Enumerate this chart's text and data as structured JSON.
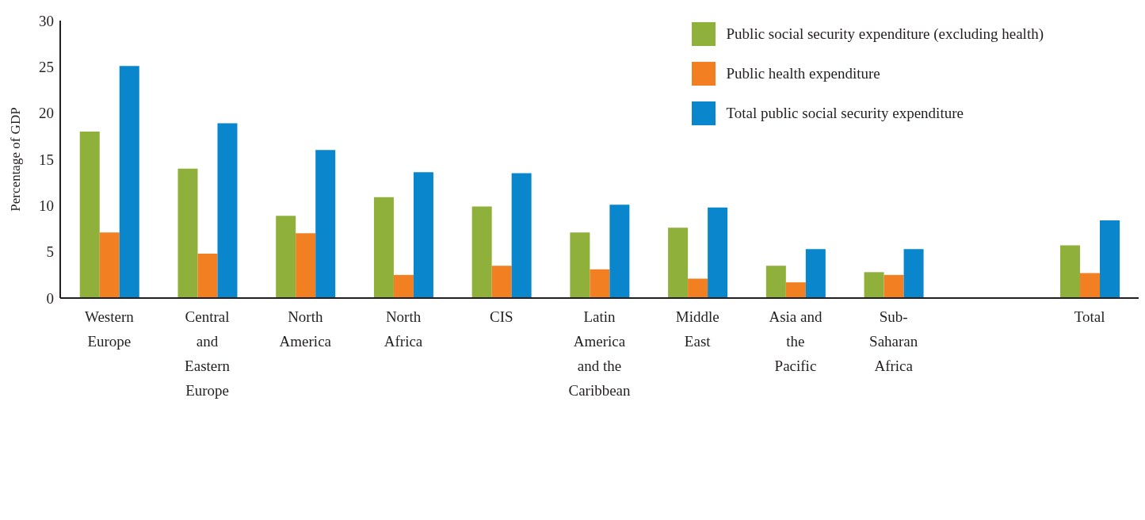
{
  "chart_data": {
    "type": "bar",
    "ylabel": "Percentage of GDP",
    "categories": [
      "Western Europe",
      "Central and Eastern Europe",
      "North America",
      "North Africa",
      "CIS",
      "Latin America and the Caribbean",
      "Middle East",
      "Asia and the Pacific",
      "Sub-Saharan Africa",
      null,
      "Total"
    ],
    "series": [
      {
        "name": "Public social security expenditure (excluding health)",
        "color": "#8fb03a",
        "values": [
          18.0,
          14.0,
          8.9,
          10.9,
          9.9,
          7.1,
          7.6,
          3.5,
          2.8,
          null,
          5.7
        ]
      },
      {
        "name": "Public health expenditure",
        "color": "#f28023",
        "values": [
          7.1,
          4.8,
          7.0,
          2.5,
          3.5,
          3.1,
          2.1,
          1.7,
          2.5,
          null,
          2.7
        ]
      },
      {
        "name": "Total public social security expenditure",
        "color": "#0a86cc",
        "values": [
          25.1,
          18.9,
          16.0,
          13.6,
          13.5,
          10.1,
          9.8,
          5.3,
          5.3,
          null,
          8.4
        ]
      }
    ],
    "ylim": [
      0,
      30
    ],
    "yticks": [
      0,
      5,
      10,
      15,
      20,
      25,
      30
    ],
    "grid": false,
    "legend": "top right"
  }
}
